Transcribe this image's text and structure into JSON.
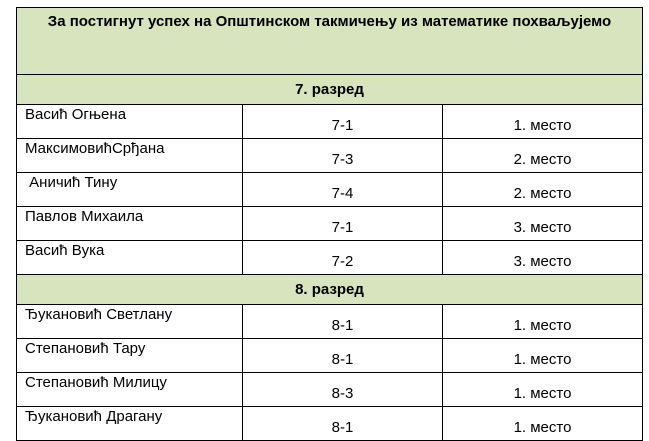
{
  "title": "За постигнут успех на Општинском такмичењу из математике похваљујемо",
  "grades": [
    {
      "label": "7. разред",
      "students": [
        {
          "name": "Васић Огњена",
          "class": "7-1",
          "place": "1. место"
        },
        {
          "name": "МаксимовићСрђана",
          "class": "7-3",
          "place": "2. место"
        },
        {
          "name": " Аничић Тину",
          "class": "7-4",
          "place": "2. место"
        },
        {
          "name": "Павлов Михаила",
          "class": "7-1",
          "place": "3. место"
        },
        {
          "name": "Васић Вука",
          "class": "7-2",
          "place": "3. место"
        }
      ]
    },
    {
      "label": "8. разред",
      "students": [
        {
          "name": "Ђукановић Светлану",
          "class": "8-1",
          "place": "1. место"
        },
        {
          "name": "Степановић Тару",
          "class": "8-1",
          "place": "1. место"
        },
        {
          "name": "Степановић Милицу",
          "class": "8-3",
          "place": "1. место"
        },
        {
          "name": "Ђукановић Драгану",
          "class": "8-1",
          "place": "1. место"
        }
      ]
    }
  ],
  "colors": {
    "header_background": "#d7e4bd",
    "border": "#000000"
  }
}
